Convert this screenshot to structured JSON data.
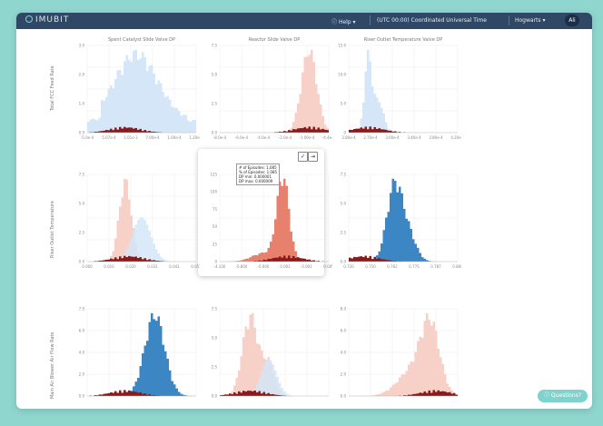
{
  "app": {
    "brand": "IMUBIT",
    "help": "Help",
    "timezone": "(UTC 00:00) Coordinated Universal Time",
    "site": "Hogwarts",
    "user": "Ali"
  },
  "icons": {
    "brand": "logo-ring-icon",
    "help": "question-circle-icon",
    "dropdown": "chevron-down-icon",
    "question": "question-circle-icon",
    "check": "check-icon",
    "exit": "exit-icon"
  },
  "grid": {
    "columns": [
      "Spent Catalyst Slide Valve DP",
      "Reactor Slide Valve DP",
      "Riser Outlet Temperature Valve DP"
    ],
    "rows": [
      "Total FCC Feed Rate",
      "Riser Outlet Temperature",
      "Main Air Blower Air Flow Rate"
    ]
  },
  "tooltip": {
    "line1": "# of Episodes: 1,085",
    "line2": "% of Episodes: 1.085",
    "line3": "DP min: 0.000001",
    "line4": "DP max: 0.000009"
  },
  "question_button": "Questions?",
  "colors": {
    "light_blue": "#d4e6f7",
    "blue": "#3d86c4",
    "light_red": "#f7d0c8",
    "red": "#e8806e",
    "dark_red": "#8b1a1a"
  },
  "cells": [
    {
      "xticks": [
        "-5.0e-4",
        "5.07e-4",
        "1.01e-3",
        "7.00e-4",
        "1.00e-4",
        "1.20e-4"
      ],
      "yticks": [
        "0.0",
        "1.0",
        "2.0",
        "3.0"
      ],
      "main": "lightblue"
    },
    {
      "xticks": [
        "-8.0e-4",
        "-6.0e-4",
        "-4.0e-4",
        "-2.0e-4",
        "-1.00e-4",
        "-4.4e-5"
      ],
      "yticks": [
        "0.0",
        "2.5",
        "5.0",
        "7.5"
      ],
      "main": "lightred"
    },
    {
      "xticks": [
        "2.80e-4",
        "2.70e-4",
        "3.00e-4",
        "3.40e-4",
        "3.80e-4",
        "4.20e-4"
      ],
      "yticks": [
        "0",
        "5.0",
        "10.0",
        "15.0"
      ],
      "main": "lightblue"
    },
    {
      "xticks": [
        "0.000",
        "0.010",
        "0.020",
        "0.031",
        "0.041",
        "0.051"
      ],
      "yticks": [
        "0.0",
        "2.5",
        "5.0",
        "7.5"
      ],
      "main": "mixed"
    },
    {
      "xticks": [
        "-4.100",
        "-0.800",
        "-0.600",
        "0.001",
        "0.001",
        "0.005"
      ],
      "yticks": [
        "0",
        "25",
        "50",
        "75",
        "100",
        "125"
      ],
      "main": "red"
    },
    {
      "xticks": [
        "0.720",
        "0.750",
        "0.762",
        "0.775",
        "0.787",
        "0.800"
      ],
      "yticks": [
        "0.0",
        "2.5",
        "5.0",
        "7.5"
      ],
      "main": "blue"
    },
    {
      "xticks": [
        "",
        "",
        "",
        "",
        "",
        ""
      ],
      "yticks": [
        "0.0",
        "2.0",
        "4.0",
        "6.0",
        "7.0"
      ],
      "main": "blue"
    },
    {
      "xticks": [
        "",
        "",
        "",
        "",
        "",
        ""
      ],
      "yticks": [
        "0.0",
        "2.5",
        "5.0",
        "7.5"
      ],
      "main": "mixedred"
    },
    {
      "xticks": [
        "",
        "",
        "",
        "",
        "",
        ""
      ],
      "yticks": [
        "0.0",
        "2.0",
        "4.0",
        "6.0",
        "8.0"
      ],
      "main": "lightred"
    }
  ]
}
